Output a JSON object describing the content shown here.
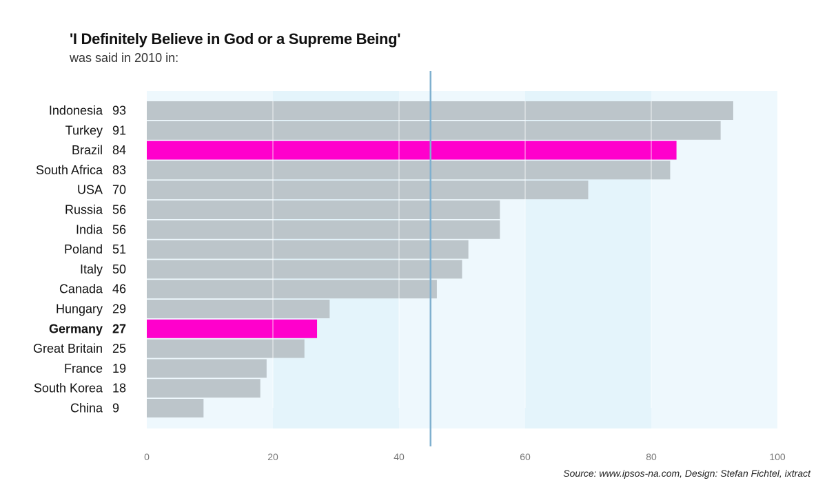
{
  "title": "'I Definitely Believe in God or a Supreme Being'",
  "subtitle": "was said in 2010 in:",
  "source": "Source: www.ipsos-na.com, Design: Stefan Fichtel, ixtract",
  "colors": {
    "bar": "#bcc5ca",
    "highlight": "#ff00cc",
    "band_light": "#eef8fd",
    "band_dark": "#e4f4fb",
    "reference_line": "#7fb0cf",
    "grid": "#ffffff"
  },
  "chart_data": {
    "type": "bar",
    "orientation": "horizontal",
    "categories": [
      "Indonesia",
      "Turkey",
      "Brazil",
      "South Africa",
      "USA",
      "Russia",
      "India",
      "Poland",
      "Italy",
      "Canada",
      "Hungary",
      "Germany",
      "Great Britain",
      "France",
      "South Korea",
      "China"
    ],
    "values": [
      93,
      91,
      84,
      83,
      70,
      56,
      56,
      51,
      50,
      46,
      29,
      27,
      25,
      19,
      18,
      9
    ],
    "highlighted": [
      "Brazil",
      "Germany"
    ],
    "bold_labels": [
      "Germany"
    ],
    "reference_line": 45,
    "xlim": [
      0,
      100
    ],
    "xticks": [
      0,
      20,
      40,
      60,
      80,
      100
    ],
    "grid": true
  }
}
